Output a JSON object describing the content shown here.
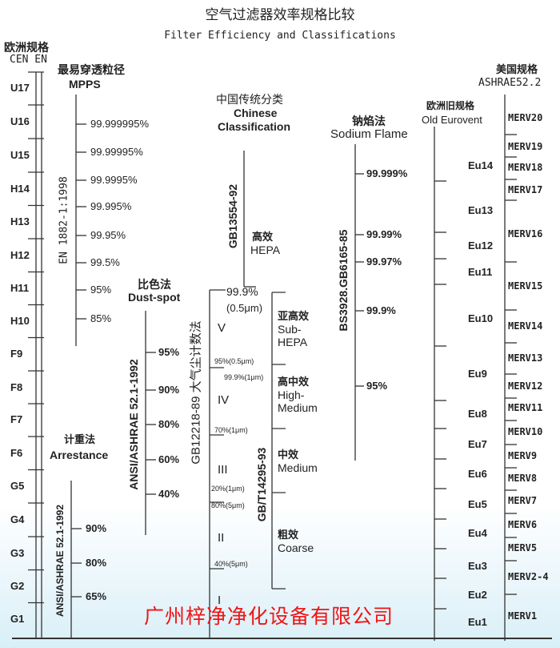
{
  "title": {
    "zh": "空气过滤器效率规格比较",
    "en": "Filter Efficiency and Classifications"
  },
  "cen": {
    "title_zh": "欧洲规格",
    "title_en": "CEN EN",
    "classes": [
      "U17",
      "U16",
      "U15",
      "H14",
      "H13",
      "H12",
      "H11",
      "H10",
      "F9",
      "F8",
      "F7",
      "F6",
      "G5",
      "G4",
      "G3",
      "G2",
      "G1"
    ]
  },
  "mpps": {
    "title_zh": "最易穿透粒径",
    "title_en": "MPPS",
    "standard": "EN 1882-1:1998",
    "values": [
      "99.999995%",
      "99.99995%",
      "99.9995%",
      "99.995%",
      "99.95%",
      "99.5%",
      "95%",
      "85%"
    ]
  },
  "dust_spot": {
    "title_zh": "比色法",
    "title_en": "Dust-spot",
    "standard": "ANSI/ASHRAE 52.1-1992",
    "values": [
      "95%",
      "90%",
      "80%",
      "60%",
      "40%"
    ]
  },
  "arrestance": {
    "title_zh": "计重法",
    "title_en": "Arrestance",
    "standard": "ANSI/ASHRAE 52.1-1992",
    "values": [
      "90%",
      "80%",
      "65%"
    ]
  },
  "chinese": {
    "title_zh": "中国传统分类",
    "title_en1": "Chinese",
    "title_en2": "Classification",
    "hepa_standard": "GB13554-92",
    "hepa_zh": "高效",
    "hepa_en": "HEPA",
    "top_value": "99.9%",
    "top_value_note": "(0.5μm)",
    "count_standard": "GB12218-89  大气尘计数法",
    "count_marks": [
      "95%(0.5μm)",
      "99.9%(1μm)",
      "70%(1μm)",
      "20%(1μm)",
      "80%(5μm)",
      "40%(5μm)"
    ],
    "grades": [
      "V",
      "IV",
      "III",
      "II",
      "I"
    ],
    "class_standard": "GB/T14295-93",
    "classes": [
      {
        "zh": "亚高效",
        "en1": "Sub-",
        "en2": "HEPA"
      },
      {
        "zh": "高中效",
        "en1": "High-",
        "en2": "Medium"
      },
      {
        "zh": "中效",
        "en1": "Medium",
        "en2": ""
      },
      {
        "zh": "粗效",
        "en1": "Coarse",
        "en2": ""
      }
    ]
  },
  "sodium": {
    "title_zh": "钠焰法",
    "title_en": "Sodium Flame",
    "standard": "BS3928.GB6165-85",
    "values": [
      "99.999%",
      "99.99%",
      "99.97%",
      "99.9%",
      "95%"
    ]
  },
  "eurovent": {
    "title_zh": "欧洲旧规格",
    "title_en": "Old Eurovent",
    "classes": [
      "Eu14",
      "Eu13",
      "Eu12",
      "Eu11",
      "Eu10",
      "Eu9",
      "Eu8",
      "Eu7",
      "Eu6",
      "Eu5",
      "Eu4",
      "Eu3",
      "Eu2",
      "Eu1"
    ]
  },
  "ashrae": {
    "title_zh": "美国规格",
    "title_en": "ASHRAE52.2",
    "classes": [
      "MERV20",
      "MERV19",
      "MERV18",
      "MERV17",
      "MERV16",
      "MERV15",
      "MERV14",
      "MERV13",
      "MERV12",
      "MERV11",
      "MERV10",
      "MERV9",
      "MERV8",
      "MERV7",
      "MERV6",
      "MERV5",
      "MERV2-4",
      "MERV1"
    ]
  },
  "footer": {
    "company": "广州梓净净化设备有限公司",
    "color": "#f01414"
  }
}
